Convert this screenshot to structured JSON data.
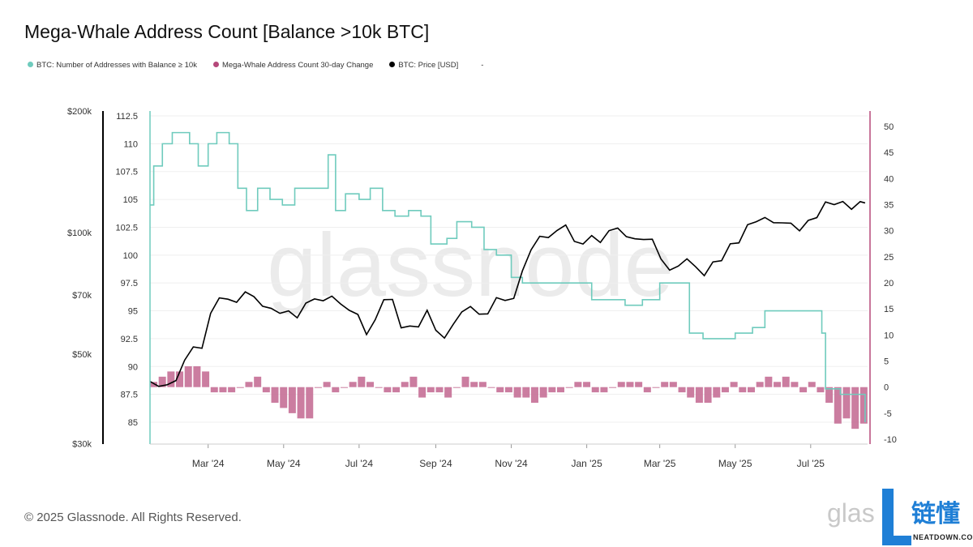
{
  "title": "Mega-Whale Address Count [Balance >10k BTC]",
  "legend": [
    {
      "label": "BTC: Number of Addresses with Balance ≥ 10k",
      "color": "#6fcbbd"
    },
    {
      "label": "Mega-Whale Address Count 30-day Change",
      "color": "#b5487a"
    },
    {
      "label": "BTC: Price [USD]",
      "color": "#000000"
    },
    {
      "label": "-",
      "color": ""
    }
  ],
  "footer": "© 2025 Glassnode. All Rights Reserved.",
  "watermark": "glassnode",
  "logo": {
    "left": "glas",
    "brand": "链懂",
    "sub": "NEATDOWN.COM",
    "accent": "#1f7fd6"
  },
  "chart_data": {
    "type": "line",
    "title": "Mega-Whale Address Count [Balance >10k BTC]",
    "x_ticks": [
      "Mar '24",
      "May '24",
      "Jul '24",
      "Sep '24",
      "Nov '24",
      "Jan '25",
      "Mar '25",
      "May '25",
      "Jul '25"
    ],
    "x_tick_dates": [
      "2024-03-01",
      "2024-05-01",
      "2024-07-01",
      "2024-09-01",
      "2024-11-01",
      "2025-01-01",
      "2025-03-01",
      "2025-05-01",
      "2025-07-01"
    ],
    "x_range": [
      "2024-01-14",
      "2025-08-16"
    ],
    "axes": {
      "count": {
        "ticks": [
          "85",
          "87.5",
          "90",
          "92.5",
          "95",
          "97.5",
          "100",
          "102.5",
          "105",
          "107.5",
          "110",
          "112.5"
        ],
        "range": [
          85,
          112.5
        ]
      },
      "change": {
        "ticks": [
          "-10",
          "-5",
          "0",
          "5",
          "10",
          "15",
          "20",
          "25",
          "30",
          "35",
          "40",
          "45",
          "50"
        ],
        "range": [
          -10,
          50
        ]
      },
      "price": {
        "ticks": [
          {
            "label": "$30k",
            "v": 30000
          },
          {
            "label": "$50k",
            "v": 50000
          },
          {
            "label": "$70k",
            "v": 70000
          },
          {
            "label": "$100k",
            "v": 100000
          },
          {
            "label": "$200k",
            "v": 200000
          }
        ],
        "scale": "log",
        "range": [
          30000,
          200000
        ]
      }
    },
    "grid": true,
    "legend_position": "top-left",
    "series": [
      {
        "name": "BTC: Number of Addresses with Balance ≥ 10k",
        "axis": "count",
        "style": "step",
        "color": "#6fcbbd",
        "points": [
          [
            "2024-01-14",
            104.5
          ],
          [
            "2024-01-17",
            108
          ],
          [
            "2024-01-24",
            110
          ],
          [
            "2024-02-01",
            111
          ],
          [
            "2024-02-15",
            110
          ],
          [
            "2024-02-22",
            108
          ],
          [
            "2024-03-01",
            110
          ],
          [
            "2024-03-08",
            111
          ],
          [
            "2024-03-18",
            110
          ],
          [
            "2024-03-25",
            106
          ],
          [
            "2024-04-01",
            104
          ],
          [
            "2024-04-10",
            106
          ],
          [
            "2024-04-20",
            105
          ],
          [
            "2024-04-30",
            104.5
          ],
          [
            "2024-05-10",
            106
          ],
          [
            "2024-05-20",
            106
          ],
          [
            "2024-06-01",
            106
          ],
          [
            "2024-06-06",
            109
          ],
          [
            "2024-06-12",
            104
          ],
          [
            "2024-06-20",
            105.5
          ],
          [
            "2024-07-01",
            105
          ],
          [
            "2024-07-10",
            106
          ],
          [
            "2024-07-20",
            104
          ],
          [
            "2024-07-30",
            103.5
          ],
          [
            "2024-08-10",
            104
          ],
          [
            "2024-08-20",
            103.5
          ],
          [
            "2024-08-28",
            101
          ],
          [
            "2024-09-10",
            101.5
          ],
          [
            "2024-09-18",
            103
          ],
          [
            "2024-09-30",
            102.5
          ],
          [
            "2024-10-10",
            100.5
          ],
          [
            "2024-10-20",
            100
          ],
          [
            "2024-11-01",
            98
          ],
          [
            "2024-11-10",
            97.5
          ],
          [
            "2024-12-01",
            97.5
          ],
          [
            "2024-12-20",
            97.5
          ],
          [
            "2025-01-05",
            96
          ],
          [
            "2025-01-20",
            96
          ],
          [
            "2025-02-01",
            95.5
          ],
          [
            "2025-02-15",
            96
          ],
          [
            "2025-03-01",
            97.5
          ],
          [
            "2025-03-15",
            97.5
          ],
          [
            "2025-03-25",
            93
          ],
          [
            "2025-04-05",
            92.5
          ],
          [
            "2025-04-20",
            92.5
          ],
          [
            "2025-05-01",
            93
          ],
          [
            "2025-05-15",
            93.5
          ],
          [
            "2025-05-25",
            95
          ],
          [
            "2025-06-10",
            95
          ],
          [
            "2025-06-25",
            95
          ],
          [
            "2025-07-05",
            95
          ],
          [
            "2025-07-10",
            93
          ],
          [
            "2025-07-13",
            88
          ],
          [
            "2025-07-25",
            87.5
          ],
          [
            "2025-08-05",
            87.5
          ],
          [
            "2025-08-14",
            85
          ]
        ]
      },
      {
        "name": "Mega-Whale Address Count 30-day Change",
        "axis": "change",
        "style": "bar",
        "color": "#c2668f",
        "points": [
          [
            "2024-01-14",
            1
          ],
          [
            "2024-01-21",
            2
          ],
          [
            "2024-01-28",
            3
          ],
          [
            "2024-02-04",
            3
          ],
          [
            "2024-02-11",
            4
          ],
          [
            "2024-02-18",
            4
          ],
          [
            "2024-02-25",
            3
          ],
          [
            "2024-03-03",
            -1
          ],
          [
            "2024-03-10",
            -1
          ],
          [
            "2024-03-17",
            -1
          ],
          [
            "2024-03-24",
            0
          ],
          [
            "2024-03-31",
            1
          ],
          [
            "2024-04-07",
            2
          ],
          [
            "2024-04-14",
            -1
          ],
          [
            "2024-04-21",
            -3
          ],
          [
            "2024-04-28",
            -4
          ],
          [
            "2024-05-05",
            -5
          ],
          [
            "2024-05-12",
            -6
          ],
          [
            "2024-05-19",
            -6
          ],
          [
            "2024-05-26",
            0
          ],
          [
            "2024-06-02",
            1
          ],
          [
            "2024-06-09",
            -1
          ],
          [
            "2024-06-16",
            0
          ],
          [
            "2024-06-23",
            1
          ],
          [
            "2024-06-30",
            2
          ],
          [
            "2024-07-07",
            1
          ],
          [
            "2024-07-14",
            0
          ],
          [
            "2024-07-21",
            -1
          ],
          [
            "2024-07-28",
            -1
          ],
          [
            "2024-08-04",
            1
          ],
          [
            "2024-08-11",
            2
          ],
          [
            "2024-08-18",
            -2
          ],
          [
            "2024-08-25",
            -1
          ],
          [
            "2024-09-01",
            -1
          ],
          [
            "2024-09-08",
            -2
          ],
          [
            "2024-09-15",
            0
          ],
          [
            "2024-09-22",
            2
          ],
          [
            "2024-09-29",
            1
          ],
          [
            "2024-10-06",
            1
          ],
          [
            "2024-10-13",
            0
          ],
          [
            "2024-10-20",
            -1
          ],
          [
            "2024-10-27",
            -1
          ],
          [
            "2024-11-03",
            -2
          ],
          [
            "2024-11-10",
            -2
          ],
          [
            "2024-11-17",
            -3
          ],
          [
            "2024-11-24",
            -2
          ],
          [
            "2024-12-01",
            -1
          ],
          [
            "2024-12-08",
            -1
          ],
          [
            "2024-12-15",
            0
          ],
          [
            "2024-12-22",
            1
          ],
          [
            "2024-12-29",
            1
          ],
          [
            "2025-01-05",
            -1
          ],
          [
            "2025-01-12",
            -1
          ],
          [
            "2025-01-19",
            0
          ],
          [
            "2025-01-26",
            1
          ],
          [
            "2025-02-02",
            1
          ],
          [
            "2025-02-09",
            1
          ],
          [
            "2025-02-16",
            -1
          ],
          [
            "2025-02-23",
            0
          ],
          [
            "2025-03-02",
            1
          ],
          [
            "2025-03-09",
            1
          ],
          [
            "2025-03-16",
            -1
          ],
          [
            "2025-03-23",
            -2
          ],
          [
            "2025-03-30",
            -3
          ],
          [
            "2025-04-06",
            -3
          ],
          [
            "2025-04-13",
            -2
          ],
          [
            "2025-04-20",
            -1
          ],
          [
            "2025-04-27",
            1
          ],
          [
            "2025-05-04",
            -1
          ],
          [
            "2025-05-11",
            -1
          ],
          [
            "2025-05-18",
            1
          ],
          [
            "2025-05-25",
            2
          ],
          [
            "2025-06-01",
            1
          ],
          [
            "2025-06-08",
            2
          ],
          [
            "2025-06-15",
            1
          ],
          [
            "2025-06-22",
            -1
          ],
          [
            "2025-06-29",
            1
          ],
          [
            "2025-07-06",
            -1
          ],
          [
            "2025-07-13",
            -3
          ],
          [
            "2025-07-20",
            -7
          ],
          [
            "2025-07-27",
            -6
          ],
          [
            "2025-08-03",
            -8
          ],
          [
            "2025-08-10",
            -7
          ]
        ]
      },
      {
        "name": "BTC: Price [USD]",
        "axis": "price",
        "style": "line",
        "color": "#000000",
        "points": [
          [
            "2024-01-14",
            42800
          ],
          [
            "2024-01-21",
            41600
          ],
          [
            "2024-01-28",
            42000
          ],
          [
            "2024-02-04",
            43000
          ],
          [
            "2024-02-11",
            48300
          ],
          [
            "2024-02-18",
            52100
          ],
          [
            "2024-02-25",
            51700
          ],
          [
            "2024-03-03",
            63100
          ],
          [
            "2024-03-10",
            68900
          ],
          [
            "2024-03-17",
            68400
          ],
          [
            "2024-03-24",
            67200
          ],
          [
            "2024-03-31",
            71300
          ],
          [
            "2024-04-07",
            69400
          ],
          [
            "2024-04-14",
            65700
          ],
          [
            "2024-04-21",
            64900
          ],
          [
            "2024-04-28",
            63100
          ],
          [
            "2024-05-05",
            64000
          ],
          [
            "2024-05-12",
            61500
          ],
          [
            "2024-05-19",
            66900
          ],
          [
            "2024-05-26",
            68500
          ],
          [
            "2024-06-02",
            67800
          ],
          [
            "2024-06-09",
            69600
          ],
          [
            "2024-06-16",
            66600
          ],
          [
            "2024-06-23",
            64200
          ],
          [
            "2024-06-30",
            62700
          ],
          [
            "2024-07-07",
            55900
          ],
          [
            "2024-07-14",
            60800
          ],
          [
            "2024-07-21",
            68200
          ],
          [
            "2024-07-28",
            68300
          ],
          [
            "2024-08-04",
            58100
          ],
          [
            "2024-08-11",
            58700
          ],
          [
            "2024-08-18",
            58400
          ],
          [
            "2024-08-25",
            64200
          ],
          [
            "2024-09-01",
            57300
          ],
          [
            "2024-09-08",
            54800
          ],
          [
            "2024-09-15",
            59200
          ],
          [
            "2024-09-22",
            63600
          ],
          [
            "2024-09-29",
            65600
          ],
          [
            "2024-10-06",
            62800
          ],
          [
            "2024-10-13",
            62900
          ],
          [
            "2024-10-20",
            69000
          ],
          [
            "2024-10-27",
            67900
          ],
          [
            "2024-11-03",
            68700
          ],
          [
            "2024-11-10",
            80400
          ],
          [
            "2024-11-17",
            90600
          ],
          [
            "2024-11-24",
            97900
          ],
          [
            "2024-12-01",
            97200
          ],
          [
            "2024-12-08",
            101200
          ],
          [
            "2024-12-15",
            104400
          ],
          [
            "2024-12-22",
            95100
          ],
          [
            "2024-12-29",
            93700
          ],
          [
            "2025-01-05",
            98300
          ],
          [
            "2025-01-12",
            94500
          ],
          [
            "2025-01-19",
            101100
          ],
          [
            "2025-01-26",
            102600
          ],
          [
            "2025-02-02",
            97700
          ],
          [
            "2025-02-09",
            96500
          ],
          [
            "2025-02-16",
            96100
          ],
          [
            "2025-02-23",
            96300
          ],
          [
            "2025-03-02",
            86000
          ],
          [
            "2025-03-09",
            80700
          ],
          [
            "2025-03-16",
            82600
          ],
          [
            "2025-03-23",
            86100
          ],
          [
            "2025-03-30",
            82300
          ],
          [
            "2025-04-06",
            78200
          ],
          [
            "2025-04-13",
            84600
          ],
          [
            "2025-04-20",
            85200
          ],
          [
            "2025-04-27",
            93800
          ],
          [
            "2025-05-04",
            94300
          ],
          [
            "2025-05-11",
            104600
          ],
          [
            "2025-05-18",
            106400
          ],
          [
            "2025-05-25",
            109000
          ],
          [
            "2025-06-01",
            105800
          ],
          [
            "2025-06-08",
            105700
          ],
          [
            "2025-06-15",
            105500
          ],
          [
            "2025-06-22",
            101000
          ],
          [
            "2025-06-29",
            107200
          ],
          [
            "2025-07-06",
            108900
          ],
          [
            "2025-07-13",
            119100
          ],
          [
            "2025-07-20",
            117300
          ],
          [
            "2025-07-27",
            119400
          ],
          [
            "2025-08-03",
            114200
          ],
          [
            "2025-08-10",
            119300
          ],
          [
            "2025-08-14",
            118400
          ]
        ]
      }
    ]
  }
}
